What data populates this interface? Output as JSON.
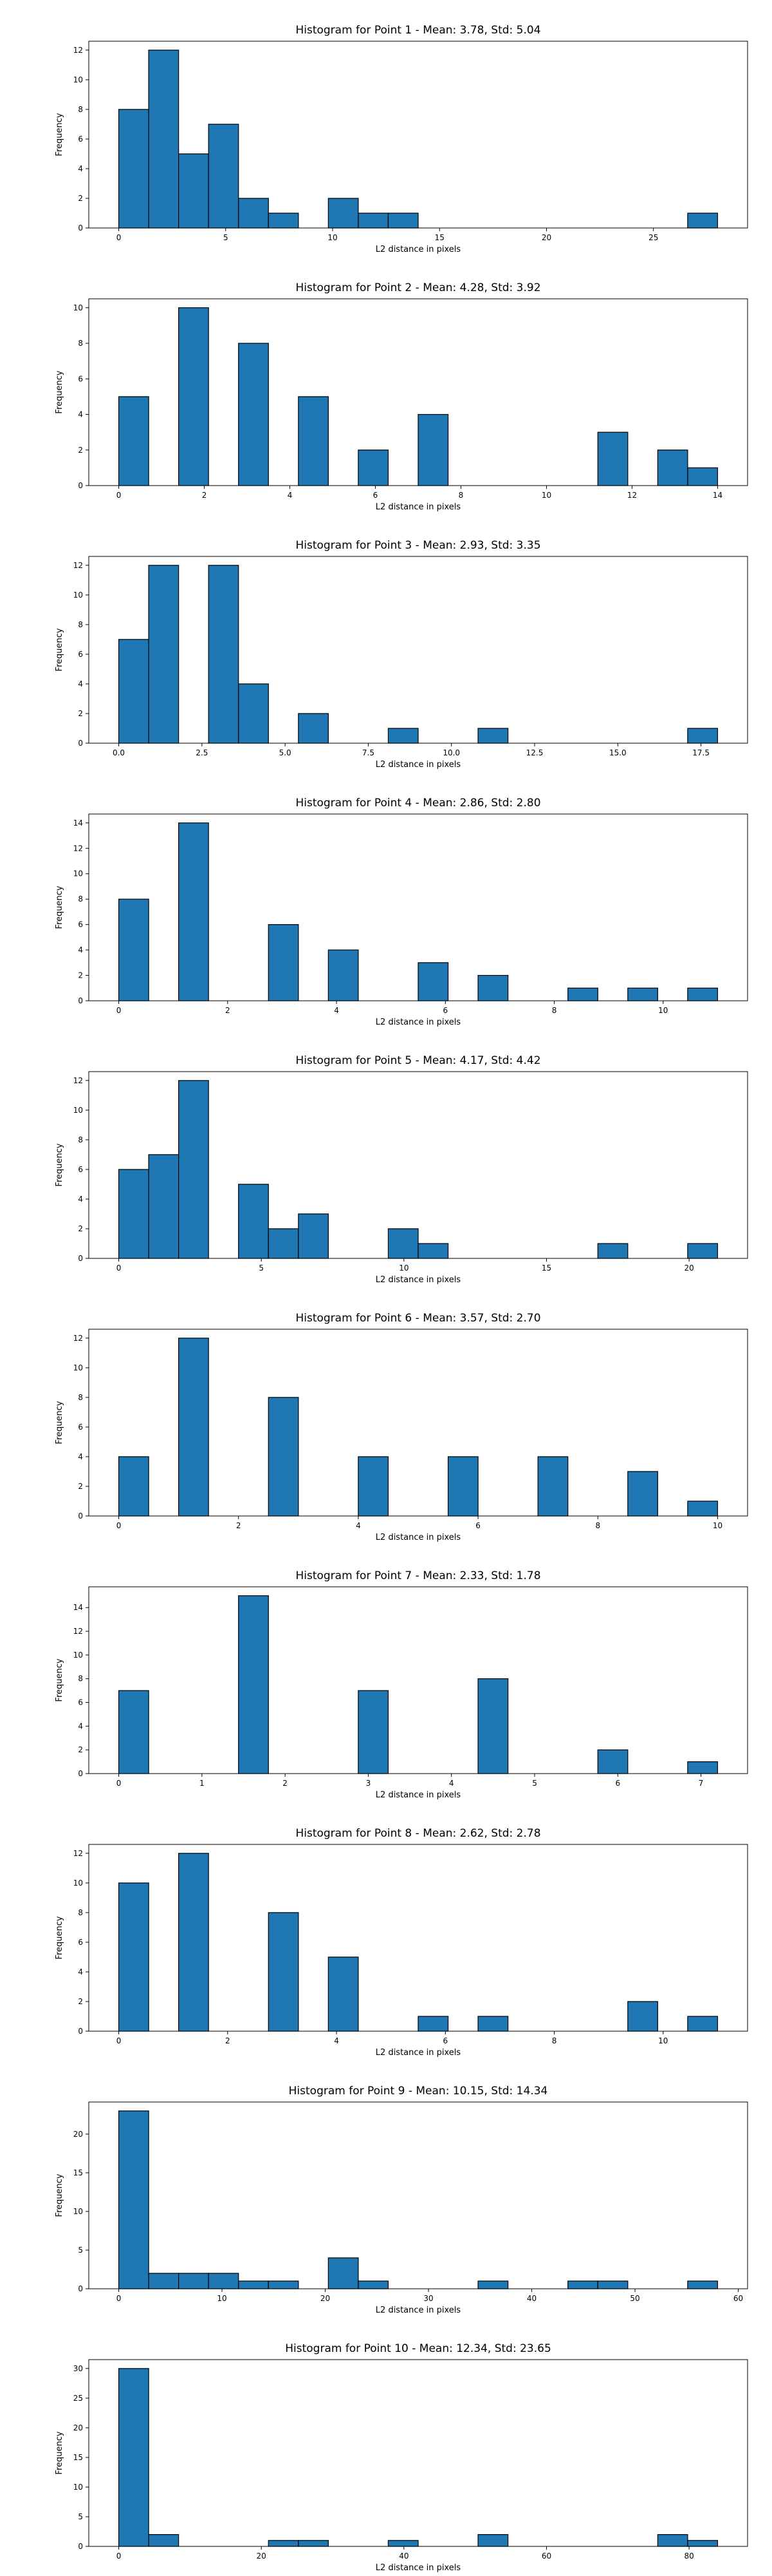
{
  "figure": {
    "bar_color": "#1f77b4",
    "edge_color": "#000000",
    "background": "#ffffff"
  },
  "chart_data": [
    {
      "type": "bar",
      "title": "Histogram for Point 1 - Mean: 3.78, Std: 5.04",
      "xlabel": "L2 distance in pixels",
      "ylabel": "Frequency",
      "xlim": [
        -1.4,
        29.4
      ],
      "ylim": [
        0,
        12.6
      ],
      "xticks": [
        0,
        5,
        10,
        15,
        20,
        25
      ],
      "yticks": [
        0,
        2,
        4,
        6,
        8,
        10,
        12
      ],
      "bin_edges": [
        0,
        1.4,
        2.8,
        4.2,
        5.6,
        7.0,
        8.4,
        9.8,
        11.2,
        12.6,
        14.0,
        15.4,
        16.8,
        18.2,
        19.6,
        21.0,
        22.4,
        23.8,
        25.2,
        26.6,
        28.0
      ],
      "values": [
        8,
        12,
        5,
        7,
        2,
        1,
        0,
        2,
        1,
        1,
        0,
        0,
        0,
        0,
        0,
        0,
        0,
        0,
        0,
        1
      ]
    },
    {
      "type": "bar",
      "title": "Histogram for Point 2 - Mean: 4.28, Std: 3.92",
      "xlabel": "L2 distance in pixels",
      "ylabel": "Frequency",
      "xlim": [
        -0.7,
        14.7
      ],
      "ylim": [
        0,
        10.5
      ],
      "xticks": [
        0,
        2,
        4,
        6,
        8,
        10,
        12,
        14
      ],
      "yticks": [
        0,
        2,
        4,
        6,
        8,
        10
      ],
      "bin_edges": [
        0,
        0.7,
        1.4,
        2.1,
        2.8,
        3.5,
        4.2,
        4.9,
        5.6,
        6.3,
        7.0,
        7.7,
        8.4,
        9.1,
        9.8,
        10.5,
        11.2,
        11.9,
        12.6,
        13.3,
        14.0
      ],
      "values": [
        5,
        0,
        10,
        0,
        8,
        0,
        5,
        0,
        2,
        0,
        4,
        0,
        0,
        0,
        0,
        0,
        3,
        0,
        2,
        1
      ]
    },
    {
      "type": "bar",
      "title": "Histogram for Point 3 - Mean: 2.93, Std: 3.35",
      "xlabel": "L2 distance in pixels",
      "ylabel": "Frequency",
      "xlim": [
        -0.9,
        18.9
      ],
      "ylim": [
        0,
        12.6
      ],
      "xticks": [
        0.0,
        2.5,
        5.0,
        7.5,
        10.0,
        12.5,
        15.0,
        17.5
      ],
      "xtick_labels": [
        "0.0",
        "2.5",
        "5.0",
        "7.5",
        "10.0",
        "12.5",
        "15.0",
        "17.5"
      ],
      "yticks": [
        0,
        2,
        4,
        6,
        8,
        10,
        12
      ],
      "bin_edges": [
        0,
        0.9,
        1.8,
        2.7,
        3.6,
        4.5,
        5.4,
        6.3,
        7.2,
        8.1,
        9.0,
        9.9,
        10.8,
        11.7,
        12.6,
        13.5,
        14.4,
        15.3,
        16.2,
        17.1,
        18.0
      ],
      "values": [
        7,
        12,
        0,
        12,
        4,
        0,
        2,
        0,
        0,
        1,
        0,
        0,
        1,
        0,
        0,
        0,
        0,
        0,
        0,
        1
      ]
    },
    {
      "type": "bar",
      "title": "Histogram for Point 4 - Mean: 2.86, Std: 2.80",
      "xlabel": "L2 distance in pixels",
      "ylabel": "Frequency",
      "xlim": [
        -0.55,
        11.55
      ],
      "ylim": [
        0,
        14.7
      ],
      "xticks": [
        0,
        2,
        4,
        6,
        8,
        10
      ],
      "yticks": [
        0,
        2,
        4,
        6,
        8,
        10,
        12,
        14
      ],
      "bin_edges": [
        0,
        0.55,
        1.1,
        1.65,
        2.2,
        2.75,
        3.3,
        3.85,
        4.4,
        4.95,
        5.5,
        6.05,
        6.6,
        7.15,
        7.7,
        8.25,
        8.8,
        9.35,
        9.9,
        10.45,
        11.0
      ],
      "values": [
        8,
        0,
        14,
        0,
        0,
        6,
        0,
        4,
        0,
        0,
        3,
        0,
        2,
        0,
        0,
        1,
        0,
        1,
        0,
        1
      ]
    },
    {
      "type": "bar",
      "title": "Histogram for Point 5 - Mean: 4.17, Std: 4.42",
      "xlabel": "L2 distance in pixels",
      "ylabel": "Frequency",
      "xlim": [
        -1.05,
        22.05
      ],
      "ylim": [
        0,
        12.6
      ],
      "xticks": [
        0,
        5,
        10,
        15,
        20
      ],
      "yticks": [
        0,
        2,
        4,
        6,
        8,
        10,
        12
      ],
      "bin_edges": [
        0,
        1.05,
        2.1,
        3.15,
        4.2,
        5.25,
        6.3,
        7.35,
        8.4,
        9.45,
        10.5,
        11.55,
        12.6,
        13.65,
        14.7,
        15.75,
        16.8,
        17.85,
        18.9,
        19.95,
        21.0
      ],
      "values": [
        6,
        7,
        12,
        0,
        5,
        2,
        3,
        0,
        0,
        2,
        1,
        0,
        0,
        0,
        0,
        0,
        1,
        0,
        0,
        1
      ]
    },
    {
      "type": "bar",
      "title": "Histogram for Point 6 - Mean: 3.57, Std: 2.70",
      "xlabel": "L2 distance in pixels",
      "ylabel": "Frequency",
      "xlim": [
        -0.5,
        10.5
      ],
      "ylim": [
        0,
        12.6
      ],
      "xticks": [
        0,
        2,
        4,
        6,
        8,
        10
      ],
      "yticks": [
        0,
        2,
        4,
        6,
        8,
        10,
        12
      ],
      "bin_edges": [
        0,
        0.5,
        1.0,
        1.5,
        2.0,
        2.5,
        3.0,
        3.5,
        4.0,
        4.5,
        5.0,
        5.5,
        6.0,
        6.5,
        7.0,
        7.5,
        8.0,
        8.5,
        9.0,
        9.5,
        10.0
      ],
      "values": [
        4,
        0,
        12,
        0,
        0,
        8,
        0,
        0,
        4,
        0,
        0,
        4,
        0,
        0,
        4,
        0,
        0,
        3,
        0,
        1
      ]
    },
    {
      "type": "bar",
      "title": "Histogram for Point 7 - Mean: 2.33, Std: 1.78",
      "xlabel": "L2 distance in pixels",
      "ylabel": "Frequency",
      "xlim": [
        -0.36,
        7.56
      ],
      "ylim": [
        0,
        15.75
      ],
      "xticks": [
        0,
        1,
        2,
        3,
        4,
        5,
        6,
        7
      ],
      "yticks": [
        0,
        2,
        4,
        6,
        8,
        10,
        12,
        14
      ],
      "bin_edges": [
        0,
        0.36,
        0.72,
        1.08,
        1.44,
        1.8,
        2.16,
        2.52,
        2.88,
        3.24,
        3.6,
        3.96,
        4.32,
        4.68,
        5.04,
        5.4,
        5.76,
        6.12,
        6.48,
        6.84,
        7.2
      ],
      "values": [
        7,
        0,
        0,
        0,
        15,
        0,
        0,
        0,
        7,
        0,
        0,
        0,
        8,
        0,
        0,
        0,
        2,
        0,
        0,
        1
      ]
    },
    {
      "type": "bar",
      "title": "Histogram for Point 8 - Mean: 2.62, Std: 2.78",
      "xlabel": "L2 distance in pixels",
      "ylabel": "Frequency",
      "xlim": [
        -0.55,
        11.55
      ],
      "ylim": [
        0,
        12.6
      ],
      "xticks": [
        0,
        2,
        4,
        6,
        8,
        10
      ],
      "yticks": [
        0,
        2,
        4,
        6,
        8,
        10,
        12
      ],
      "bin_edges": [
        0,
        0.55,
        1.1,
        1.65,
        2.2,
        2.75,
        3.3,
        3.85,
        4.4,
        4.95,
        5.5,
        6.05,
        6.6,
        7.15,
        7.7,
        8.25,
        8.8,
        9.35,
        9.9,
        10.45,
        11.0
      ],
      "values": [
        10,
        0,
        12,
        0,
        0,
        8,
        0,
        5,
        0,
        0,
        1,
        0,
        1,
        0,
        0,
        0,
        0,
        2,
        0,
        1
      ]
    },
    {
      "type": "bar",
      "title": "Histogram for Point 9 - Mean: 10.15, Std: 14.34",
      "xlabel": "L2 distance in pixels",
      "ylabel": "Frequency",
      "xlim": [
        -2.9,
        60.9
      ],
      "ylim": [
        0,
        24.15
      ],
      "xticks": [
        0,
        10,
        20,
        30,
        40,
        50,
        60
      ],
      "yticks": [
        0,
        5,
        10,
        15,
        20
      ],
      "bin_edges": [
        0,
        2.9,
        5.8,
        8.7,
        11.6,
        14.5,
        17.4,
        20.3,
        23.2,
        26.1,
        29.0,
        31.9,
        34.8,
        37.7,
        40.6,
        43.5,
        46.4,
        49.3,
        52.2,
        55.1,
        58.0
      ],
      "values": [
        23,
        2,
        2,
        2,
        1,
        1,
        0,
        4,
        1,
        0,
        0,
        0,
        1,
        0,
        0,
        1,
        1,
        0,
        0,
        1
      ]
    },
    {
      "type": "bar",
      "title": "Histogram for Point 10 - Mean: 12.34, Std: 23.65",
      "xlabel": "L2 distance in pixels",
      "ylabel": "Frequency",
      "xlim": [
        -4.2,
        88.2
      ],
      "ylim": [
        0,
        31.5
      ],
      "xticks": [
        0,
        20,
        40,
        60,
        80
      ],
      "yticks": [
        0,
        5,
        10,
        15,
        20,
        25,
        30
      ],
      "bin_edges": [
        0,
        4.2,
        8.4,
        12.6,
        16.8,
        21.0,
        25.2,
        29.4,
        33.6,
        37.8,
        42.0,
        46.2,
        50.4,
        54.6,
        58.8,
        63.0,
        67.2,
        71.4,
        75.6,
        79.8,
        84.0
      ],
      "values": [
        30,
        2,
        0,
        0,
        0,
        1,
        1,
        0,
        0,
        1,
        0,
        0,
        2,
        0,
        0,
        0,
        0,
        0,
        2,
        1
      ]
    }
  ]
}
